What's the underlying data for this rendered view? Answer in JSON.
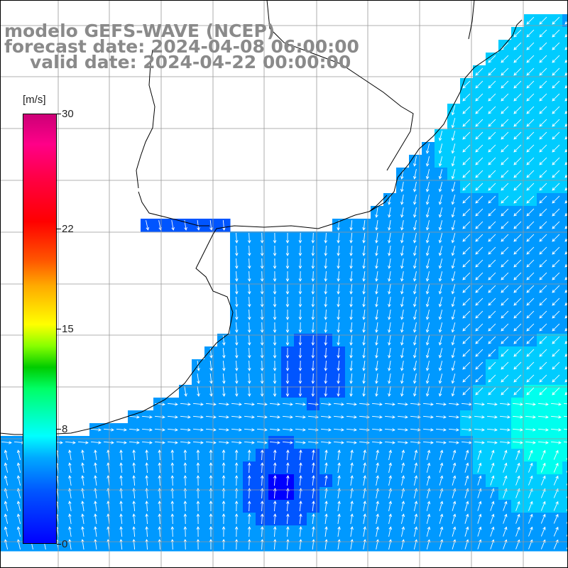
{
  "header": {
    "title": "modelo GEFS-WAVE (NCEP)",
    "forecast": "forecast date: 2024-04-08 06:00:00",
    "valid": "valid date: 2024-04-22 00:00:00"
  },
  "colorbar": {
    "units": "[m/s]",
    "ticks": [
      {
        "value": 30,
        "label": "30"
      },
      {
        "value": 22,
        "label": "22"
      },
      {
        "value": 15,
        "label": "15"
      },
      {
        "value": 8,
        "label": "8"
      },
      {
        "value": 0,
        "label": "0"
      }
    ],
    "min": 0,
    "max": 30
  },
  "map": {
    "land_color": "#ffffff",
    "grid_color": "#999999",
    "coast_color": "#000000",
    "arrow_color": "#ffffff",
    "speed_colors": [
      "#0000ff",
      "#0055ff",
      "#0099ff",
      "#00ccff",
      "#00ffee"
    ]
  }
}
